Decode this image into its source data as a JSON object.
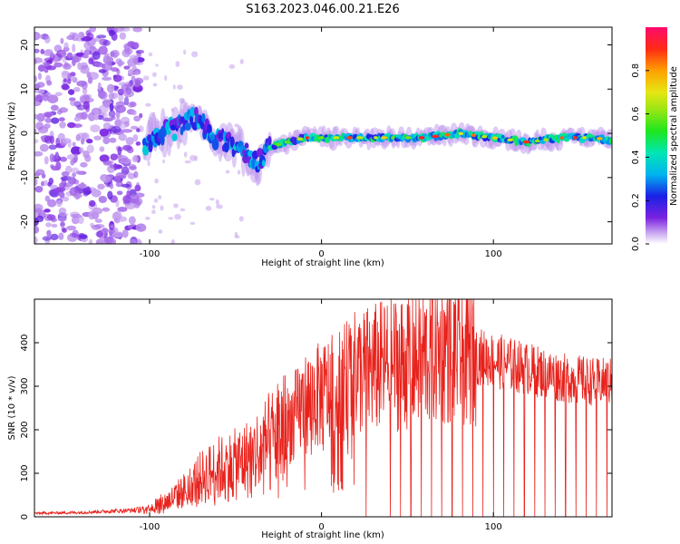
{
  "title": "S163.2023.046.00.21.E26",
  "colors": {
    "snr_line": "#e8221c",
    "axis": "#000000",
    "background": "#ffffff"
  },
  "chart_data": [
    {
      "type": "heatmap",
      "xlabel": "Height of straight line (km)",
      "ylabel": "Frequency (Hz)",
      "xlim": [
        -167,
        169
      ],
      "ylim": [
        -25,
        24
      ],
      "x_ticks": [
        -100,
        0,
        100
      ],
      "y_ticks": [
        -20,
        -10,
        0,
        10,
        20
      ],
      "colorbar": {
        "label": "Normalized spectral amplitude",
        "range": [
          0,
          1
        ],
        "ticks": [
          0.0,
          0.2,
          0.4,
          0.6,
          0.8
        ],
        "tick_labels": [
          "0.0",
          "0.2",
          "0.4",
          "0.6",
          "0.8"
        ]
      },
      "ridge": {
        "x": [
          -103,
          -95,
          -85,
          -75,
          -65,
          -55,
          -45,
          -38,
          -30,
          -20,
          -10,
          0,
          20,
          40,
          60,
          80,
          100,
          120,
          140,
          160,
          169
        ],
        "frequency": [
          -2,
          0,
          1,
          4,
          0,
          -2,
          -4,
          -7,
          -3,
          -2,
          -1,
          -1,
          -1,
          -1,
          -1,
          0,
          -1,
          -2,
          -1,
          -1,
          -2
        ]
      },
      "noise_region_x": [
        -167,
        -105
      ]
    },
    {
      "type": "line",
      "xlabel": "Height of straight line (km)",
      "ylabel": "SNR (10 * v/v)",
      "xlim": [
        -167,
        169
      ],
      "ylim": [
        0,
        500
      ],
      "x_ticks": [
        -100,
        0,
        100
      ],
      "y_ticks": [
        0,
        100,
        200,
        300,
        400
      ],
      "series": [
        {
          "x": [
            -167,
            -140,
            -110,
            -100,
            -90,
            -80,
            -70,
            -60,
            -50,
            -40,
            -30,
            -20,
            -10,
            0,
            10,
            20,
            30,
            40,
            50,
            60,
            70,
            80,
            90,
            100,
            110,
            120,
            130,
            140,
            150,
            160,
            169
          ],
          "values": [
            8,
            10,
            15,
            22,
            35,
            60,
            90,
            110,
            120,
            140,
            170,
            210,
            260,
            280,
            300,
            330,
            340,
            350,
            360,
            370,
            380,
            375,
            370,
            360,
            350,
            340,
            330,
            320,
            315,
            310,
            310
          ],
          "peak": {
            "x": 73,
            "value": 490
          },
          "dropouts_x": [
            26,
            40,
            46,
            52,
            58,
            64,
            70,
            76,
            82,
            88,
            94,
            100,
            106,
            112,
            118,
            124,
            130,
            136,
            142,
            148,
            154,
            160,
            166
          ]
        }
      ]
    }
  ]
}
